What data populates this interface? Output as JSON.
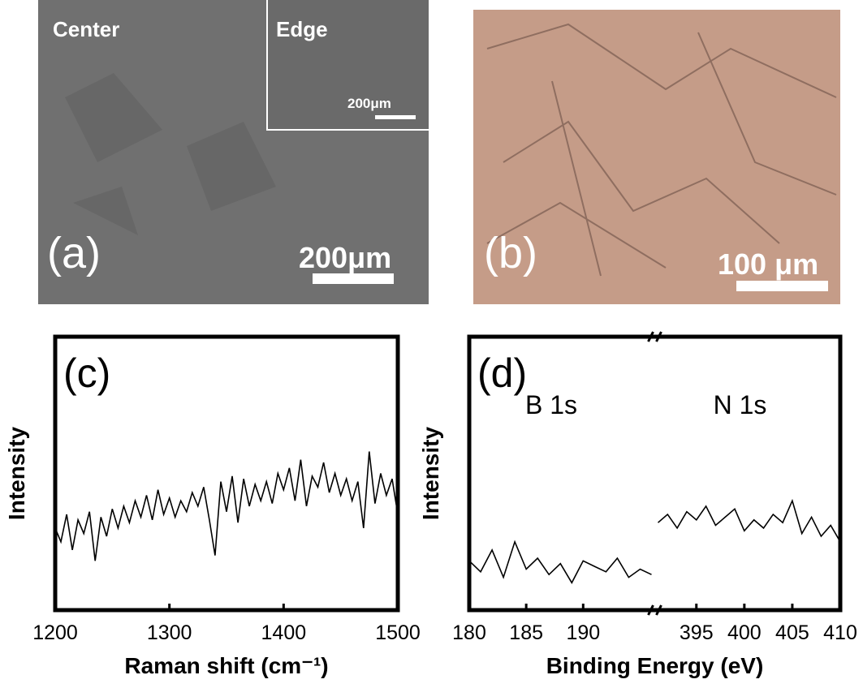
{
  "images": [
    {
      "panel_label": "(a)",
      "center": "Center",
      "inset": "Edge",
      "inset_scale": "200μm",
      "scale": "200μm"
    },
    {
      "panel_label": "(b)",
      "scale": "100 μm"
    }
  ],
  "chart_data": [
    {
      "type": "line",
      "panel_label": "(c)",
      "x_label": "Raman shift (cm⁻¹)",
      "y_label": "Intensity",
      "color": "#000000",
      "xlim": [
        1200,
        1500
      ],
      "xticks": [
        1200,
        1300,
        1400,
        1500
      ],
      "ylim": [
        0,
        100
      ],
      "x": [
        1200,
        1205,
        1210,
        1215,
        1220,
        1225,
        1230,
        1235,
        1240,
        1245,
        1250,
        1255,
        1260,
        1265,
        1270,
        1275,
        1280,
        1285,
        1290,
        1295,
        1300,
        1305,
        1310,
        1315,
        1320,
        1325,
        1330,
        1335,
        1340,
        1345,
        1350,
        1355,
        1360,
        1365,
        1370,
        1375,
        1380,
        1385,
        1390,
        1395,
        1400,
        1405,
        1410,
        1415,
        1420,
        1425,
        1430,
        1435,
        1440,
        1445,
        1450,
        1455,
        1460,
        1465,
        1470,
        1475,
        1480,
        1485,
        1490,
        1495,
        1500
      ],
      "values": [
        30,
        25,
        35,
        22,
        33,
        28,
        36,
        18,
        34,
        27,
        37,
        30,
        38,
        32,
        40,
        34,
        42,
        33,
        44,
        35,
        41,
        34,
        40,
        36,
        43,
        38,
        45,
        33,
        20,
        47,
        36,
        49,
        32,
        48,
        38,
        46,
        40,
        47,
        39,
        50,
        44,
        52,
        40,
        55,
        38,
        49,
        45,
        54,
        43,
        50,
        42,
        48,
        40,
        47,
        30,
        58,
        39,
        50,
        42,
        48,
        35
      ]
    },
    {
      "type": "broken-line",
      "panel_label": "(d)",
      "x_label": "Binding Energy (eV)",
      "y_label": "Intensity",
      "color": "#000000",
      "ylim": [
        0,
        100
      ],
      "segments": [
        {
          "annotation": "B 1s",
          "xlim": [
            180,
            196
          ],
          "xticks": [
            180,
            185,
            190
          ],
          "x": [
            180,
            181,
            182,
            183,
            184,
            185,
            186,
            187,
            188,
            189,
            190,
            191,
            192,
            193,
            194,
            195,
            196
          ],
          "values": [
            18,
            14,
            22,
            12,
            25,
            15,
            19,
            13,
            17,
            10,
            18,
            16,
            14,
            19,
            12,
            15,
            13
          ]
        },
        {
          "annotation": "N 1s",
          "xlim": [
            391,
            410
          ],
          "xticks": [
            395,
            400,
            405,
            410
          ],
          "x": [
            391,
            392,
            393,
            394,
            395,
            396,
            397,
            398,
            399,
            400,
            401,
            402,
            403,
            404,
            405,
            406,
            407,
            408,
            409,
            410
          ],
          "values": [
            32,
            35,
            30,
            36,
            33,
            38,
            31,
            34,
            37,
            29,
            33,
            30,
            35,
            32,
            40,
            28,
            34,
            27,
            31,
            25
          ]
        }
      ]
    }
  ]
}
